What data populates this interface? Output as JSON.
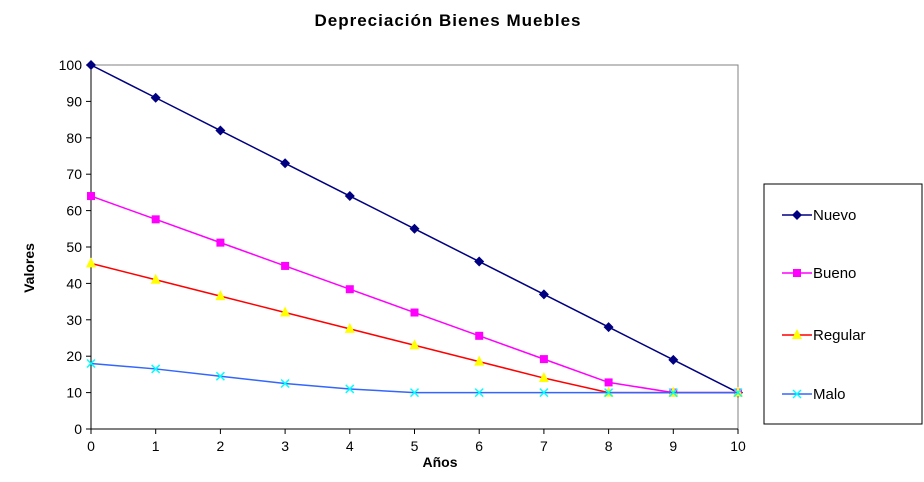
{
  "chart_data": {
    "type": "line",
    "title": "Depreciación Bienes Muebles",
    "xlabel": "Años",
    "ylabel": "Valores",
    "x": [
      0,
      1,
      2,
      3,
      4,
      5,
      6,
      7,
      8,
      9,
      10
    ],
    "xlim": [
      0,
      10
    ],
    "ylim": [
      0,
      100
    ],
    "yticks": [
      0,
      10,
      20,
      30,
      40,
      50,
      60,
      70,
      80,
      90,
      100
    ],
    "grid": false,
    "legend": "right",
    "series": [
      {
        "name": "Nuevo",
        "color": "#000080",
        "marker": "diamond",
        "values": [
          100,
          91,
          82,
          73,
          64,
          55,
          46,
          37,
          28,
          19,
          10
        ]
      },
      {
        "name": "Bueno",
        "color": "#ff00ff",
        "marker": "square",
        "values": [
          64,
          57.6,
          51.2,
          44.8,
          38.4,
          32,
          25.6,
          19.2,
          12.8,
          10,
          10
        ]
      },
      {
        "name": "Regular",
        "color": "#ff0000",
        "markerColor": "#ffff00",
        "marker": "triangle",
        "values": [
          45.5,
          41,
          36.5,
          32,
          27.5,
          23,
          18.5,
          14,
          10,
          10,
          10
        ]
      },
      {
        "name": "Malo",
        "color": "#3366ff",
        "markerColor": "#00ffff",
        "marker": "x",
        "values": [
          18,
          16.5,
          14.5,
          12.5,
          11,
          10,
          10,
          10,
          10,
          10,
          10
        ]
      }
    ]
  }
}
